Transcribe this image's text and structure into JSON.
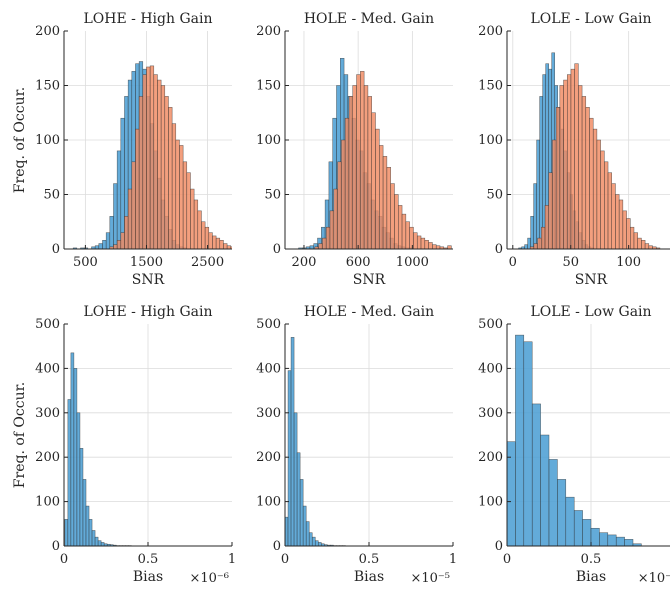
{
  "colors": {
    "blue": "#4d9fd4",
    "orange": "#f08a62",
    "edge": "#2b2b2b"
  },
  "chart_data": [
    {
      "type": "bar",
      "title": "LOHE - High Gain",
      "xlabel": "SNR",
      "ylabel": "Freq. of Occur.",
      "xlim": [
        150,
        2900
      ],
      "ylim": [
        0,
        200
      ],
      "xticks": [
        500,
        1500,
        2500
      ],
      "yticks": [
        0,
        50,
        100,
        150,
        200
      ],
      "exponent": "",
      "grid": true,
      "series": [
        {
          "color": "blue",
          "bin_start": 300,
          "bin_width": 60,
          "values": [
            1,
            0,
            1,
            1,
            0,
            2,
            3,
            5,
            8,
            15,
            30,
            60,
            90,
            120,
            140,
            155,
            163,
            170,
            172,
            165,
            140,
            115,
            90,
            65,
            45,
            30,
            18,
            8,
            4,
            2,
            1
          ]
        },
        {
          "color": "orange",
          "bin_start": 900,
          "bin_width": 60,
          "values": [
            2,
            4,
            8,
            15,
            30,
            55,
            80,
            110,
            140,
            160,
            167,
            168,
            160,
            155,
            150,
            140,
            130,
            115,
            100,
            95,
            80,
            70,
            55,
            45,
            35,
            25,
            20,
            15,
            12,
            10,
            8,
            5,
            3,
            2
          ]
        }
      ]
    },
    {
      "type": "bar",
      "title": "HOLE - Med. Gain",
      "xlabel": "SNR",
      "ylabel": "",
      "xlim": [
        60,
        1300
      ],
      "ylim": [
        0,
        200
      ],
      "xticks": [
        200,
        600,
        1000
      ],
      "xtick_labels": [
        "200",
        "600",
        "1000"
      ],
      "yticks": [
        0,
        50,
        100,
        150,
        200
      ],
      "exponent": "",
      "grid": true,
      "series": [
        {
          "color": "blue",
          "bin_start": 160,
          "bin_width": 28,
          "values": [
            1,
            1,
            2,
            3,
            5,
            10,
            20,
            45,
            80,
            120,
            150,
            175,
            160,
            140,
            120,
            100,
            90,
            70,
            60,
            45,
            35,
            30,
            20,
            15,
            10,
            5,
            3,
            2,
            1,
            1
          ]
        },
        {
          "color": "orange",
          "bin_start": 280,
          "bin_width": 28,
          "values": [
            2,
            5,
            10,
            20,
            35,
            55,
            80,
            100,
            120,
            140,
            150,
            160,
            163,
            150,
            140,
            125,
            110,
            95,
            85,
            75,
            60,
            50,
            40,
            32,
            25,
            20,
            15,
            12,
            10,
            8,
            6,
            4,
            3,
            2,
            1,
            3
          ]
        }
      ]
    },
    {
      "type": "bar",
      "title": "LOLE - Low Gain",
      "xlabel": "SNR",
      "ylabel": "",
      "xlim": [
        -5,
        140
      ],
      "ylim": [
        0,
        200
      ],
      "xticks": [
        0,
        50,
        100
      ],
      "yticks": [
        0,
        50,
        100,
        150,
        200
      ],
      "exponent": "",
      "grid": true,
      "series": [
        {
          "color": "blue",
          "bin_start": 5,
          "bin_width": 2.6,
          "values": [
            1,
            2,
            4,
            10,
            30,
            60,
            100,
            140,
            160,
            170,
            165,
            180,
            150,
            130,
            110,
            90,
            70,
            50,
            35,
            25,
            15,
            8,
            4,
            2,
            1
          ]
        },
        {
          "color": "orange",
          "bin_start": 15,
          "bin_width": 3.2,
          "values": [
            2,
            5,
            10,
            20,
            40,
            70,
            100,
            130,
            150,
            155,
            160,
            165,
            170,
            150,
            140,
            130,
            120,
            110,
            100,
            90,
            80,
            70,
            60,
            50,
            45,
            35,
            28,
            20,
            15,
            10,
            8,
            5,
            3,
            2,
            1
          ]
        }
      ]
    },
    {
      "type": "bar",
      "title": "LOHE - High Gain",
      "xlabel": "Bias",
      "ylabel": "Freq. of Occur.",
      "xlim": [
        0,
        1
      ],
      "ylim": [
        0,
        500
      ],
      "xticks": [
        0,
        0.5,
        1
      ],
      "yticks": [
        0,
        100,
        200,
        300,
        400,
        500
      ],
      "exponent": "×10⁻⁶",
      "grid": true,
      "series": [
        {
          "color": "blue",
          "bin_start": 0.005,
          "bin_width": 0.018,
          "values": [
            60,
            330,
            435,
            400,
            300,
            220,
            150,
            90,
            60,
            35,
            20,
            12,
            8,
            5,
            4,
            3,
            2,
            1,
            1,
            1,
            1,
            1
          ]
        }
      ]
    },
    {
      "type": "bar",
      "title": "HOLE - Med. Gain",
      "xlabel": "Bias",
      "ylabel": "",
      "xlim": [
        0,
        1
      ],
      "ylim": [
        0,
        500
      ],
      "xticks": [
        0,
        0.5,
        1
      ],
      "yticks": [
        0,
        100,
        200,
        300,
        400,
        500
      ],
      "exponent": "×10⁻⁵",
      "grid": true,
      "series": [
        {
          "color": "blue",
          "bin_start": 0.0,
          "bin_width": 0.018,
          "values": [
            65,
            395,
            470,
            300,
            210,
            150,
            90,
            55,
            30,
            20,
            12,
            8,
            5,
            3,
            2,
            2,
            1,
            1,
            1,
            1
          ]
        }
      ]
    },
    {
      "type": "bar",
      "title": "LOLE - Low Gain",
      "xlabel": "Bias",
      "ylabel": "",
      "xlim": [
        0,
        1
      ],
      "ylim": [
        0,
        500
      ],
      "xticks": [
        0,
        0.5,
        1
      ],
      "xtick_labels": [
        "0",
        "0.5",
        ""
      ],
      "yticks": [
        0,
        100,
        200,
        300,
        400,
        500
      ],
      "exponent": "×10⁻",
      "grid": true,
      "series": [
        {
          "color": "blue",
          "bin_start": 0.0,
          "bin_width": 0.05,
          "values": [
            235,
            475,
            460,
            320,
            250,
            195,
            150,
            110,
            80,
            60,
            40,
            30,
            25,
            20,
            15,
            5
          ]
        }
      ]
    }
  ]
}
